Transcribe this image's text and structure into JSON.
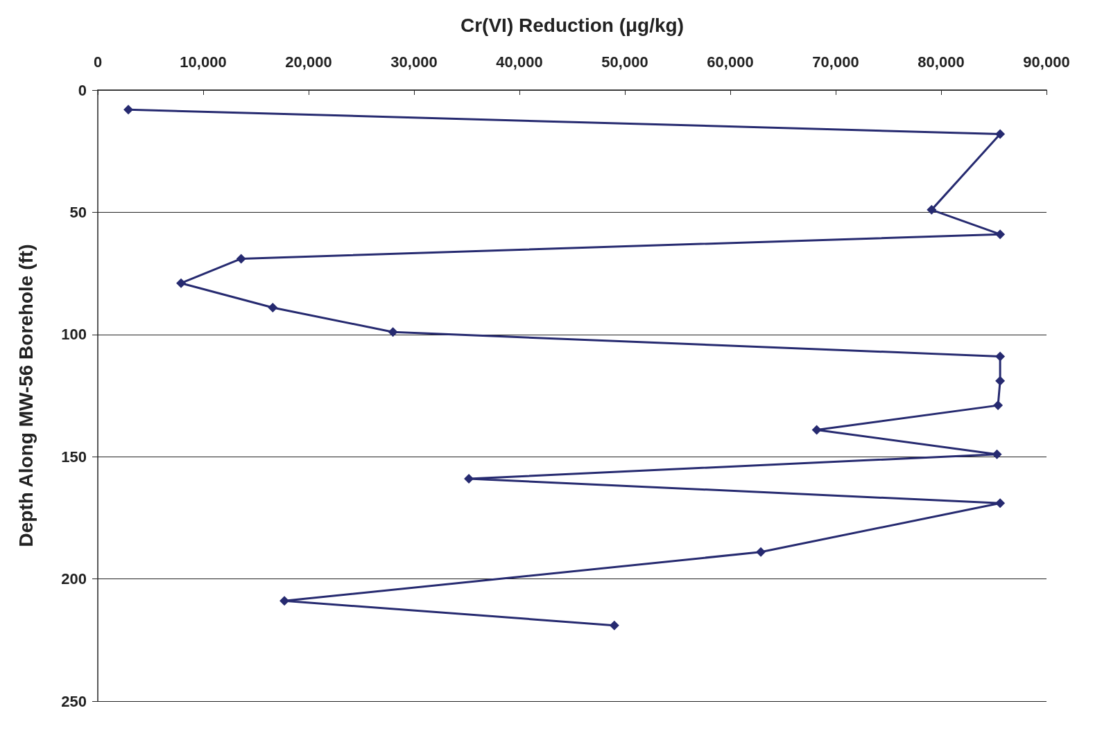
{
  "chart_data": {
    "type": "line",
    "xlabel": "Cr(VI) Reduction (μg/kg)",
    "ylabel": "Depth Along MW-56 Borehole (ft)",
    "x": [
      2900,
      85600,
      79100,
      85600,
      13600,
      7900,
      16600,
      28000,
      85600,
      85600,
      85400,
      68200,
      85300,
      35200,
      85600,
      62900,
      17700,
      49000
    ],
    "values": [
      8,
      18,
      49,
      59,
      69,
      79,
      89,
      99,
      109,
      119,
      129,
      139,
      149,
      159,
      169,
      189,
      209,
      219
    ],
    "color": "#262a70",
    "marker": "diamond",
    "line_style": "solid",
    "grid": "y",
    "xlim": [
      0,
      90000
    ],
    "xticks": [
      0,
      {
        "value": 10000,
        "label": "10,000"
      },
      {
        "value": 20000,
        "label": "20,000"
      },
      {
        "value": 30000,
        "label": "30,000"
      },
      {
        "value": 40000,
        "label": "40,000"
      },
      {
        "value": 50000,
        "label": "50,000"
      },
      {
        "value": 60000,
        "label": "60,000"
      },
      {
        "value": 70000,
        "label": "70,000"
      },
      {
        "value": 80000,
        "label": "80,000"
      },
      {
        "value": 90000,
        "label": "90,000"
      }
    ],
    "ylim": [
      250,
      0
    ],
    "yticks": [
      0,
      50,
      100,
      150,
      200,
      250
    ]
  }
}
